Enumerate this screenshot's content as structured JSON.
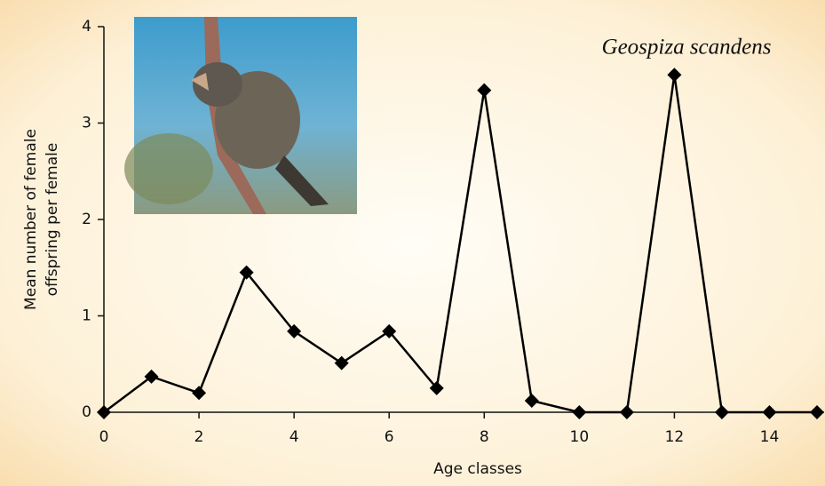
{
  "chart_data": {
    "type": "line",
    "title": "Geospiza scandens",
    "xlabel": "Age classes",
    "ylabel": [
      "Mean number of female",
      "offspring per female"
    ],
    "x": [
      0,
      1,
      2,
      3,
      4,
      5,
      6,
      7,
      8,
      9,
      10,
      11,
      12,
      13,
      14,
      15
    ],
    "series": [
      {
        "color": "#000000",
        "values": [
          0,
          0.37,
          0.2,
          1.45,
          0.84,
          0.51,
          0.84,
          0.25,
          3.34,
          0.12,
          0,
          0,
          3.5,
          0,
          0,
          0
        ]
      }
    ],
    "xlim": [
      0,
      15
    ],
    "xticks": [
      0,
      2,
      4,
      6,
      8,
      10,
      12,
      14
    ],
    "ylim": [
      0,
      4
    ],
    "yticks": [
      0,
      1,
      2,
      3,
      4
    ],
    "grid": false
  }
}
